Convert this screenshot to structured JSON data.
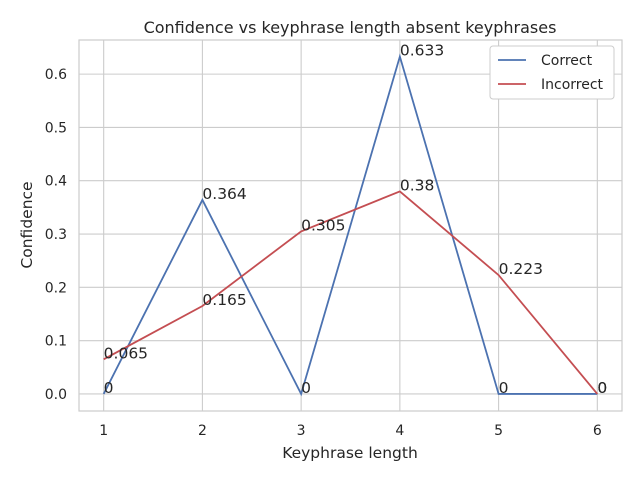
{
  "chart_data": {
    "type": "line",
    "title": "Confidence vs keyphrase length absent keyphrases",
    "xlabel": "Keyphrase length",
    "ylabel": "Confidence",
    "x": [
      1,
      2,
      3,
      4,
      5,
      6
    ],
    "xticks": [
      "1",
      "2",
      "3",
      "4",
      "5",
      "6"
    ],
    "yticks": [
      "0.0",
      "0.1",
      "0.2",
      "0.3",
      "0.4",
      "0.5",
      "0.6"
    ],
    "xlim": [
      0.75,
      6.25
    ],
    "ylim": [
      -0.032,
      0.664
    ],
    "grid": true,
    "legend_position": "top-right",
    "series": [
      {
        "name": "Correct",
        "color": "#4c72b0",
        "values": [
          0,
          0.364,
          0,
          0.633,
          0,
          0
        ],
        "labels": [
          "0",
          "0.364",
          "0",
          "0.633",
          "0",
          "0"
        ]
      },
      {
        "name": "Incorrect",
        "color": "#c44e52",
        "values": [
          0.065,
          0.165,
          0.305,
          0.38,
          0.223,
          0
        ],
        "labels": [
          "0.065",
          "0.165",
          "0.305",
          "0.38",
          "0.223",
          "0"
        ]
      }
    ]
  }
}
